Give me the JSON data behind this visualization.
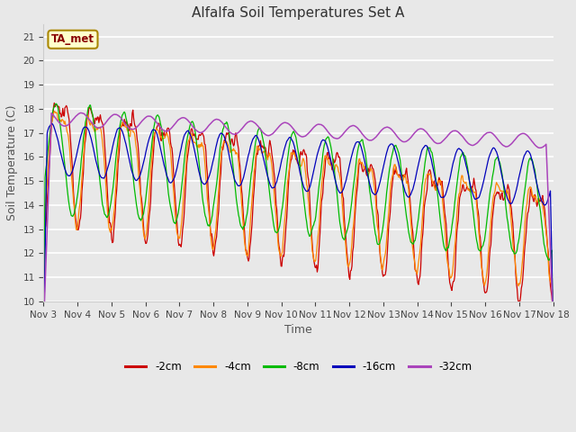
{
  "title": "Alfalfa Soil Temperatures Set A",
  "xlabel": "Time",
  "ylabel": "Soil Temperature (C)",
  "ylim": [
    10.0,
    21.5
  ],
  "yticks": [
    10.0,
    11.0,
    12.0,
    13.0,
    14.0,
    15.0,
    16.0,
    17.0,
    18.0,
    19.0,
    20.0,
    21.0
  ],
  "bg_color": "#e8e8e8",
  "line_colors": {
    "-2cm": "#cc0000",
    "-4cm": "#ff8800",
    "-8cm": "#00bb00",
    "-16cm": "#0000bb",
    "-32cm": "#aa44bb"
  },
  "annotation_text": "TA_met",
  "annotation_bg": "#ffffcc",
  "annotation_border": "#aa8800",
  "annotation_fg": "#880000",
  "legend_labels": [
    "-2cm",
    "-4cm",
    "-8cm",
    "-16cm",
    "-32cm"
  ],
  "xtick_labels": [
    "Nov 3",
    "Nov 4",
    "Nov 5",
    "Nov 6",
    "Nov 7",
    "Nov 8",
    "Nov 9",
    "Nov 10",
    "Nov 11",
    "Nov 12",
    "Nov 13",
    "Nov 14",
    "Nov 15",
    "Nov 16",
    "Nov 17",
    "Nov 18"
  ],
  "n_days": 15,
  "pts_per_day": 48,
  "figsize": [
    6.4,
    4.8
  ],
  "dpi": 100
}
